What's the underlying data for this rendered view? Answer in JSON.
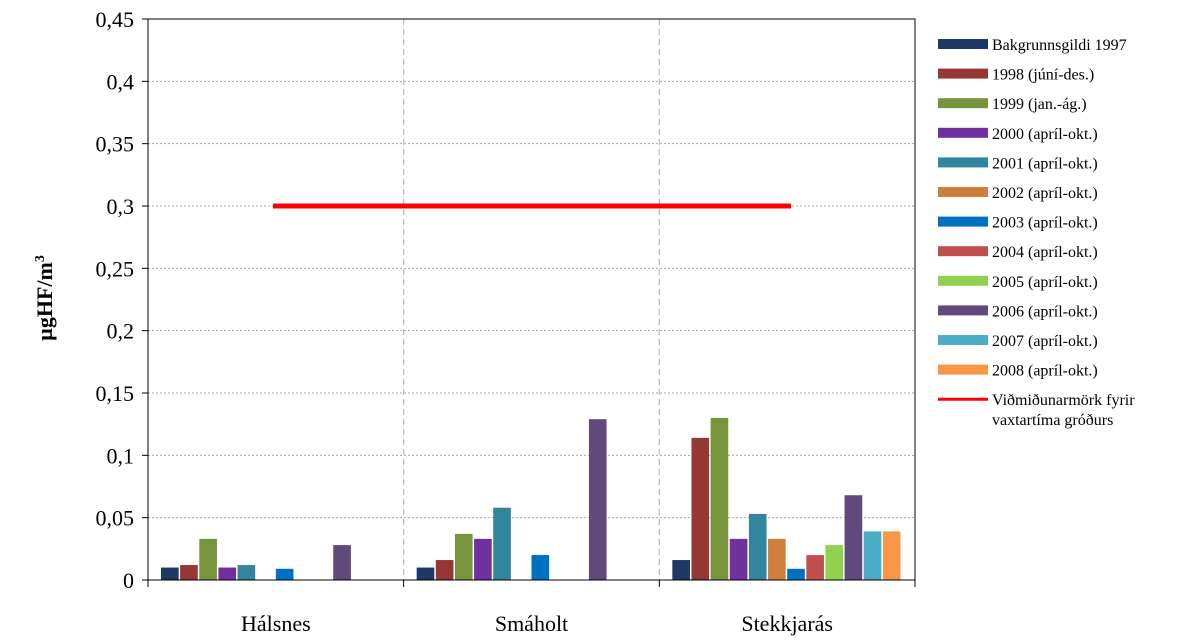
{
  "chart_data": {
    "type": "bar",
    "categories": [
      "Hálsnes",
      "Smáholt",
      "Stekkjarás"
    ],
    "ylabel": "µgHF/m",
    "ylabel_superscript": "3",
    "ylim": [
      0,
      0.45
    ],
    "yticks": [
      0,
      0.05,
      0.1,
      0.15,
      0.2,
      0.25,
      0.3,
      0.35,
      0.4,
      0.45
    ],
    "ytick_labels": [
      "0",
      "0,05",
      "0,1",
      "0,15",
      "0,2",
      "0,25",
      "0,3",
      "0,35",
      "0,4",
      "0,45"
    ],
    "grid": true,
    "legend_position": "right",
    "series": [
      {
        "name": "Bakgrunnsgildi 1997",
        "color": "#1f3864",
        "values": [
          0.01,
          0.01,
          0.016
        ]
      },
      {
        "name": "1998 (júní-des.)",
        "color": "#953735",
        "values": [
          0.012,
          0.016,
          0.114
        ]
      },
      {
        "name": "1999 (jan.-ág.)",
        "color": "#77933c",
        "values": [
          0.033,
          0.037,
          0.13
        ]
      },
      {
        "name": "2000 (apríl-okt.)",
        "color": "#7030a0",
        "values": [
          0.01,
          0.033,
          0.033
        ]
      },
      {
        "name": "2001 (apríl-okt.)",
        "color": "#31859c",
        "values": [
          0.012,
          0.058,
          0.053
        ]
      },
      {
        "name": "2002 (apríl-okt.)",
        "color": "#d07f3a",
        "values": [
          null,
          null,
          0.033
        ]
      },
      {
        "name": "2003 (apríl-okt.)",
        "color": "#0070c0",
        "values": [
          0.009,
          0.02,
          0.009
        ]
      },
      {
        "name": "2004 (apríl-okt.)",
        "color": "#c0504d",
        "values": [
          null,
          null,
          0.02
        ]
      },
      {
        "name": "2005 (apríl-okt.)",
        "color": "#92d050",
        "values": [
          null,
          null,
          0.028
        ]
      },
      {
        "name": "2006 (apríl-okt.)",
        "color": "#604a7b",
        "values": [
          0.028,
          0.129,
          0.068
        ]
      },
      {
        "name": "2007 (apríl-okt.)",
        "color": "#4bacc6",
        "values": [
          null,
          null,
          0.039
        ]
      },
      {
        "name": "2008 (apríl-okt.)",
        "color": "#f79646",
        "values": [
          null,
          null,
          0.039
        ]
      }
    ],
    "threshold": {
      "name_line1": "Viðmiðunarmörk fyrir",
      "name_line2": "vaxtartíma gróðurs",
      "value": 0.3,
      "color": "#ff0000"
    }
  }
}
